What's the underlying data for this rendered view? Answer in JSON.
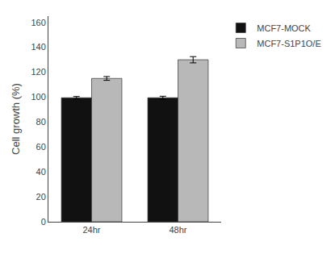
{
  "chart_data": {
    "type": "bar",
    "categories": [
      "24hr",
      "48hr"
    ],
    "series": [
      {
        "name": "MCF7-MOCK",
        "color": "#111111",
        "values": [
          99.5,
          99.5
        ],
        "errors": [
          1.0,
          1.2
        ]
      },
      {
        "name": "MCF7-S1P1O/E",
        "color": "#b8b8b8",
        "values": [
          115.0,
          130.0
        ],
        "errors": [
          1.5,
          2.5
        ]
      }
    ],
    "ylabel": "Cell growth (%)",
    "ylim": [
      0,
      165
    ],
    "yticks": [
      0,
      20,
      40,
      60,
      80,
      100,
      120,
      140,
      160
    ],
    "grid": false,
    "legend": "right"
  }
}
